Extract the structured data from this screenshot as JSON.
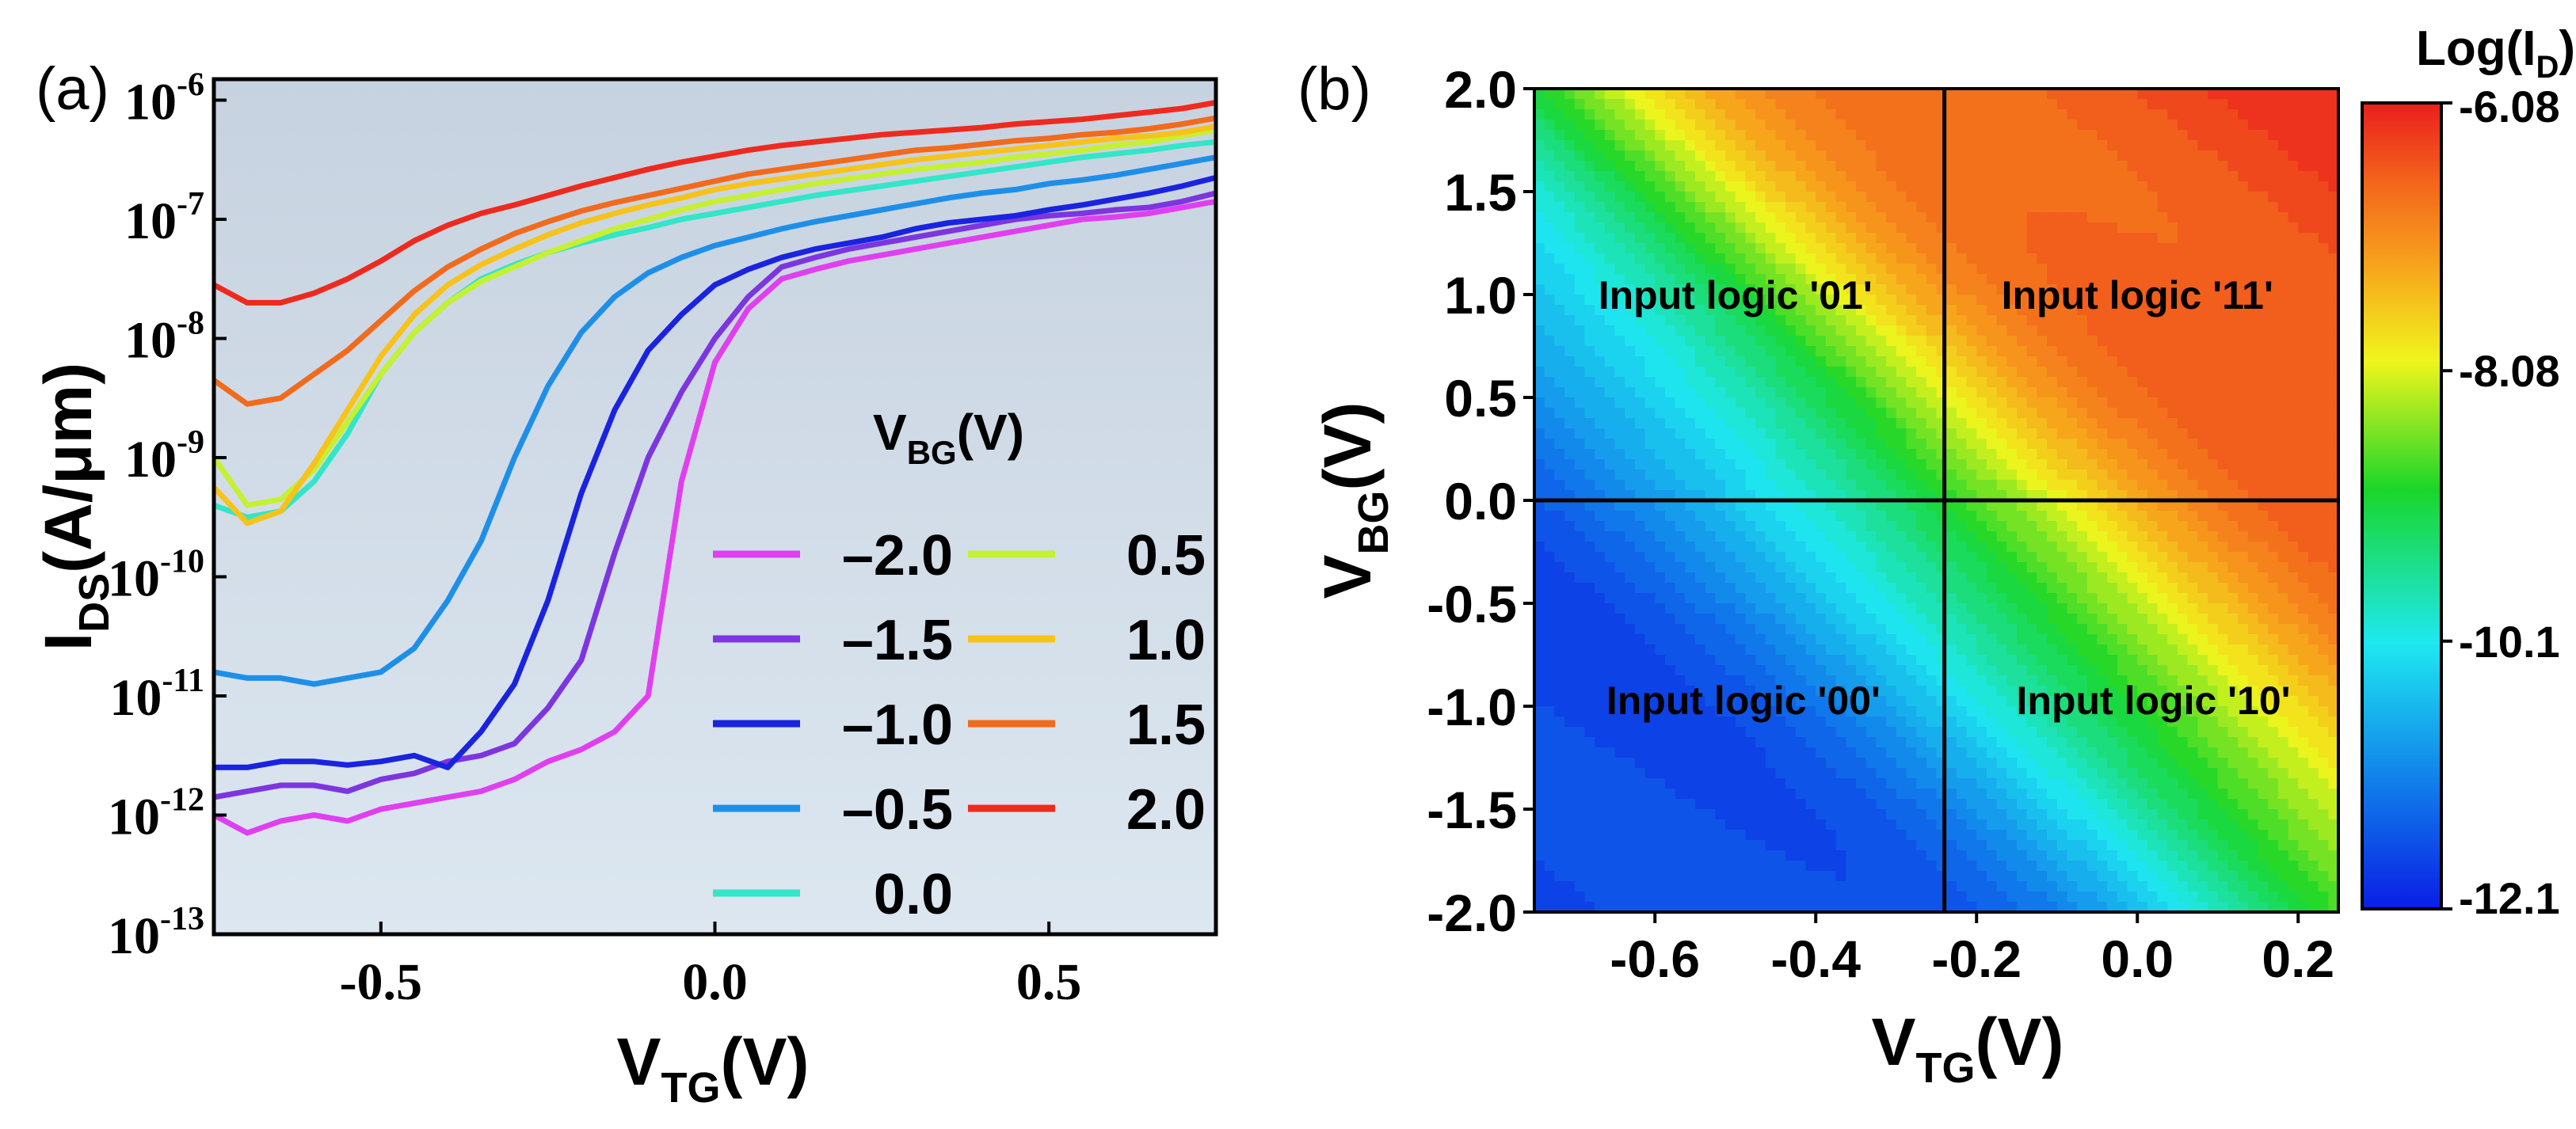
{
  "chart_data": [
    {
      "panel_label": "(a)",
      "type": "line",
      "y_scale": "log",
      "xlabel": "V",
      "xlabel_sub": "TG",
      "xlabel_unit": "(V)",
      "ylabel": "I",
      "ylabel_sub": "DS",
      "ylabel_unit": "(A/μm)",
      "xlim": [
        -0.75,
        0.75
      ],
      "ylim": [
        1e-13,
        1.5e-06
      ],
      "x_ticks": [
        {
          "value": -0.5,
          "label": "-0.5"
        },
        {
          "value": 0.0,
          "label": "0.0"
        },
        {
          "value": 0.5,
          "label": "0.5"
        }
      ],
      "y_ticks": [
        {
          "exp": -6,
          "base": "10",
          "sup": "-6"
        },
        {
          "exp": -7,
          "base": "10",
          "sup": "-7"
        },
        {
          "exp": -8,
          "base": "10",
          "sup": "-8"
        },
        {
          "exp": -9,
          "base": "10",
          "sup": "-9"
        },
        {
          "exp": -10,
          "base": "10",
          "sup": "-10"
        },
        {
          "exp": -11,
          "base": "10",
          "sup": "-11"
        },
        {
          "exp": -12,
          "base": "10",
          "sup": "-12"
        },
        {
          "exp": -13,
          "base": "10",
          "sup": "-13"
        }
      ],
      "legend_title": "V",
      "legend_title_sub": "BG",
      "legend_title_unit": "(V)",
      "legend_position": "bottom-right",
      "x": [
        -0.75,
        -0.7,
        -0.65,
        -0.6,
        -0.55,
        -0.5,
        -0.45,
        -0.4,
        -0.35,
        -0.3,
        -0.25,
        -0.2,
        -0.15,
        -0.1,
        -0.05,
        0.0,
        0.05,
        0.1,
        0.15,
        0.2,
        0.25,
        0.3,
        0.35,
        0.4,
        0.45,
        0.5,
        0.55,
        0.6,
        0.65,
        0.7,
        0.75
      ],
      "series": [
        {
          "name": "–2.0",
          "color": "#e03ff0",
          "log10_values": [
            -12.0,
            -12.15,
            -12.05,
            -12.0,
            -12.05,
            -11.95,
            -11.9,
            -11.85,
            -11.8,
            -11.7,
            -11.55,
            -11.45,
            -11.3,
            -11.0,
            -9.2,
            -8.2,
            -7.75,
            -7.5,
            -7.42,
            -7.35,
            -7.3,
            -7.25,
            -7.2,
            -7.15,
            -7.1,
            -7.05,
            -7.0,
            -6.98,
            -6.95,
            -6.9,
            -6.85
          ]
        },
        {
          "name": "–1.5",
          "color": "#7d35e0",
          "log10_values": [
            -11.85,
            -11.8,
            -11.75,
            -11.75,
            -11.8,
            -11.7,
            -11.65,
            -11.55,
            -11.5,
            -11.4,
            -11.1,
            -10.7,
            -9.8,
            -9.0,
            -8.45,
            -8.0,
            -7.65,
            -7.4,
            -7.32,
            -7.25,
            -7.2,
            -7.15,
            -7.1,
            -7.05,
            -7.0,
            -6.97,
            -6.95,
            -6.92,
            -6.9,
            -6.85,
            -6.78
          ]
        },
        {
          "name": "–1.0",
          "color": "#1a23e0",
          "log10_values": [
            -11.6,
            -11.6,
            -11.55,
            -11.55,
            -11.58,
            -11.55,
            -11.5,
            -11.6,
            -11.3,
            -10.9,
            -10.2,
            -9.3,
            -8.6,
            -8.1,
            -7.8,
            -7.55,
            -7.42,
            -7.32,
            -7.25,
            -7.2,
            -7.15,
            -7.08,
            -7.03,
            -7.0,
            -6.97,
            -6.92,
            -6.88,
            -6.83,
            -6.78,
            -6.72,
            -6.65
          ]
        },
        {
          "name": "–0.5",
          "color": "#1e8fe8",
          "log10_values": [
            -10.8,
            -10.85,
            -10.85,
            -10.9,
            -10.85,
            -10.8,
            -10.6,
            -10.2,
            -9.7,
            -9.0,
            -8.4,
            -7.95,
            -7.65,
            -7.45,
            -7.32,
            -7.22,
            -7.15,
            -7.08,
            -7.02,
            -6.97,
            -6.92,
            -6.87,
            -6.82,
            -6.78,
            -6.75,
            -6.7,
            -6.67,
            -6.63,
            -6.58,
            -6.53,
            -6.48
          ]
        },
        {
          "name": "0.0",
          "color": "#33e6c8",
          "log10_values": [
            -9.4,
            -9.5,
            -9.45,
            -9.2,
            -8.8,
            -8.3,
            -7.95,
            -7.7,
            -7.5,
            -7.38,
            -7.28,
            -7.2,
            -7.13,
            -7.07,
            -7.0,
            -6.95,
            -6.9,
            -6.85,
            -6.8,
            -6.76,
            -6.72,
            -6.68,
            -6.64,
            -6.6,
            -6.56,
            -6.52,
            -6.48,
            -6.45,
            -6.42,
            -6.38,
            -6.35
          ]
        },
        {
          "name": "0.5",
          "color": "#c6f032",
          "log10_values": [
            -9.0,
            -9.4,
            -9.35,
            -9.1,
            -8.7,
            -8.3,
            -7.95,
            -7.7,
            -7.52,
            -7.4,
            -7.28,
            -7.18,
            -7.08,
            -7.0,
            -6.92,
            -6.85,
            -6.8,
            -6.75,
            -6.7,
            -6.66,
            -6.62,
            -6.58,
            -6.55,
            -6.52,
            -6.48,
            -6.45,
            -6.42,
            -6.38,
            -6.35,
            -6.3,
            -6.25
          ]
        },
        {
          "name": "1.0",
          "color": "#f7c31a",
          "log10_values": [
            -9.25,
            -9.55,
            -9.45,
            -9.05,
            -8.6,
            -8.15,
            -7.8,
            -7.55,
            -7.38,
            -7.25,
            -7.13,
            -7.03,
            -6.95,
            -6.88,
            -6.82,
            -6.75,
            -6.7,
            -6.66,
            -6.62,
            -6.58,
            -6.54,
            -6.5,
            -6.47,
            -6.44,
            -6.41,
            -6.38,
            -6.35,
            -6.32,
            -6.3,
            -6.27,
            -6.22
          ]
        },
        {
          "name": "1.5",
          "color": "#f26a1c",
          "log10_values": [
            -8.35,
            -8.55,
            -8.5,
            -8.3,
            -8.1,
            -7.85,
            -7.6,
            -7.4,
            -7.25,
            -7.12,
            -7.02,
            -6.93,
            -6.86,
            -6.8,
            -6.74,
            -6.68,
            -6.62,
            -6.58,
            -6.54,
            -6.5,
            -6.46,
            -6.42,
            -6.4,
            -6.37,
            -6.34,
            -6.32,
            -6.29,
            -6.27,
            -6.24,
            -6.2,
            -6.15
          ]
        },
        {
          "name": "2.0",
          "color": "#ee2a1e",
          "log10_values": [
            -7.55,
            -7.7,
            -7.7,
            -7.62,
            -7.5,
            -7.35,
            -7.18,
            -7.05,
            -6.95,
            -6.88,
            -6.8,
            -6.72,
            -6.65,
            -6.58,
            -6.52,
            -6.47,
            -6.42,
            -6.38,
            -6.35,
            -6.32,
            -6.29,
            -6.27,
            -6.25,
            -6.23,
            -6.2,
            -6.18,
            -6.16,
            -6.13,
            -6.1,
            -6.07,
            -6.02
          ]
        }
      ]
    },
    {
      "panel_label": "(b)",
      "type": "heatmap",
      "xlabel": "V",
      "xlabel_sub": "TG",
      "xlabel_unit": "(V)",
      "ylabel": "V",
      "ylabel_sub": "BG",
      "ylabel_unit": "(V)",
      "xlim": [
        -0.75,
        0.25
      ],
      "ylim": [
        -2.0,
        2.0
      ],
      "x_ticks": [
        {
          "value": -0.6,
          "label": "-0.6"
        },
        {
          "value": -0.4,
          "label": "-0.4"
        },
        {
          "value": -0.2,
          "label": "-0.2"
        },
        {
          "value": 0.0,
          "label": "0.0"
        },
        {
          "value": 0.2,
          "label": "0.2"
        }
      ],
      "y_ticks": [
        {
          "value": 2.0,
          "label": "2.0"
        },
        {
          "value": 1.5,
          "label": "1.5"
        },
        {
          "value": 1.0,
          "label": "1.0"
        },
        {
          "value": 0.5,
          "label": "0.5"
        },
        {
          "value": 0.0,
          "label": "0.0"
        },
        {
          "value": -0.5,
          "label": "-0.5"
        },
        {
          "value": -1.0,
          "label": "-1.0"
        },
        {
          "value": -1.5,
          "label": "-1.5"
        },
        {
          "value": -2.0,
          "label": "-2.0"
        }
      ],
      "divider_x": -0.24,
      "divider_y": 0.0,
      "z_min": -12.1,
      "z_max": -6.08,
      "colorbar_title": "Log(I",
      "colorbar_title_sub": "D",
      "colorbar_title_end": ")",
      "colorbar_ticks": [
        {
          "value": -6.08,
          "label": "-6.08"
        },
        {
          "value": -8.08,
          "label": "-8.08"
        },
        {
          "value": -10.1,
          "label": "-10.1"
        },
        {
          "value": -12.1,
          "label": "-12.1"
        }
      ],
      "colormap": [
        "#0a1ee6",
        "#1180ea",
        "#1ee8f0",
        "#1ad62a",
        "#f0f51c",
        "#f7a21c",
        "#f3661c",
        "#ea1e1e"
      ],
      "quadrant_labels": [
        {
          "text": "Input logic '01'",
          "x": -0.5,
          "y": 1.0
        },
        {
          "text": "Input logic '11'",
          "x": 0.0,
          "y": 1.0
        },
        {
          "text": "Input logic '00'",
          "x": -0.49,
          "y": -0.97
        },
        {
          "text": "Input logic '10'",
          "x": 0.02,
          "y": -0.97
        }
      ]
    }
  ]
}
